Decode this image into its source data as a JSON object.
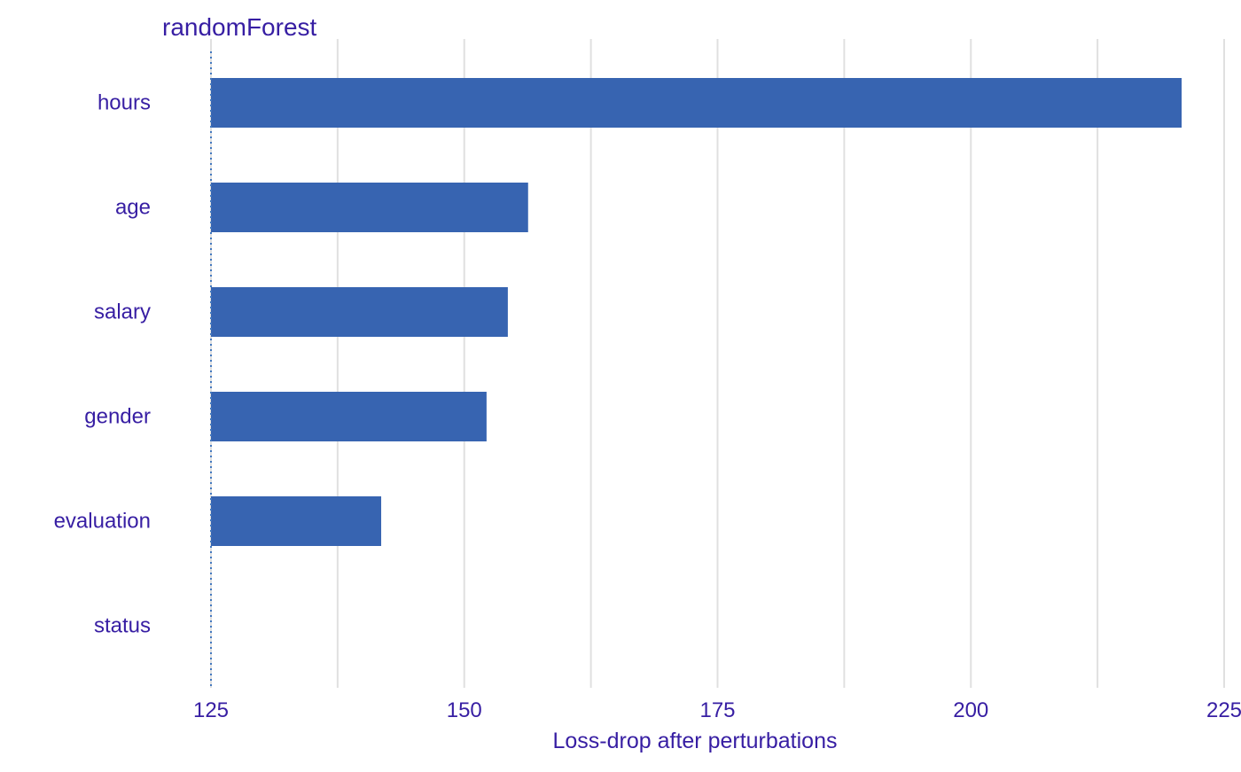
{
  "chart_data": {
    "type": "bar",
    "orientation": "horizontal",
    "title": "randomForest",
    "xlabel": "Loss-drop after perturbations",
    "ylabel": "",
    "xlim": [
      125,
      225
    ],
    "baseline": 125,
    "x_ticks": [
      125,
      150,
      175,
      200,
      225
    ],
    "categories": [
      "hours",
      "age",
      "salary",
      "gender",
      "evaluation",
      "status"
    ],
    "values": [
      220.8,
      156.3,
      154.3,
      152.2,
      141.8,
      125
    ],
    "grid": "vertical",
    "legend": "none",
    "colors": {
      "bar": "#3764b1",
      "text": "#371ea3",
      "grid": "#e0e0e0",
      "baseline": "#4378bf"
    }
  }
}
